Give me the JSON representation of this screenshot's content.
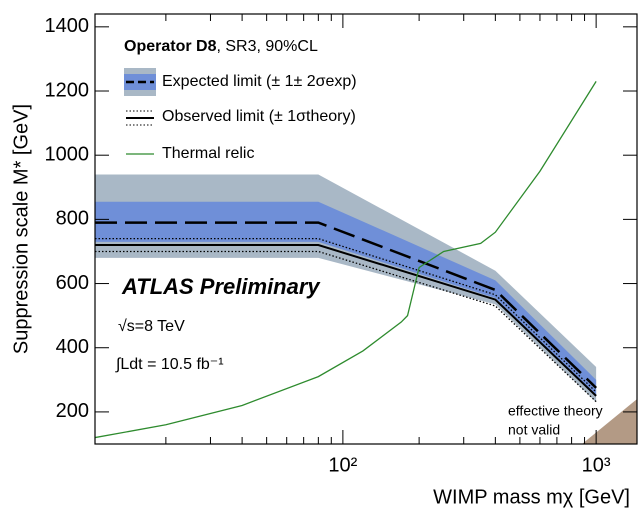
{
  "chart_data": {
    "type": "line",
    "xlabel": "WIMP mass mχ [GeV]",
    "ylabel": "Suppression scale M* [GeV]",
    "log_x": true,
    "xlim": [
      10.5,
      1450
    ],
    "ylim": [
      100,
      1440
    ],
    "xticks": [
      {
        "value": 100,
        "label": "10²"
      },
      {
        "value": 1000,
        "label": "10³"
      }
    ],
    "xticks_minor": [
      20,
      30,
      40,
      50,
      60,
      70,
      80,
      90,
      200,
      300,
      400,
      500,
      600,
      700,
      800,
      900
    ],
    "yticks": [
      200,
      400,
      600,
      800,
      1000,
      1200,
      1400
    ],
    "legend_title": [
      "Operator D8",
      ", SR3, 90%CL"
    ],
    "x": [
      10.5,
      80,
      400,
      1000
    ],
    "series": [
      {
        "name": "Expected limit (± 1± 2σexp)",
        "color": "#000000",
        "values": [
          790,
          790,
          580,
          275
        ],
        "band1_low": [
          730,
          730,
          555,
          250
        ],
        "band1_high": [
          855,
          855,
          610,
          300
        ],
        "band1_color": "#6f8fd8",
        "band2_low": [
          680,
          680,
          535,
          230
        ],
        "band2_high": [
          940,
          940,
          640,
          340
        ],
        "band2_color": "#a9b8c6"
      },
      {
        "name": "Observed limit (± 1σtheory)",
        "color": "#000000",
        "values": [
          720,
          720,
          550,
          250
        ],
        "theory_low": [
          700,
          700,
          530,
          232
        ],
        "theory_high": [
          740,
          740,
          565,
          262
        ]
      },
      {
        "name": "Thermal relic",
        "color": "#2e8b2e",
        "x": [
          10.5,
          20,
          40,
          80,
          120,
          170,
          180,
          200,
          250,
          350,
          400,
          600,
          1000
        ],
        "values": [
          120,
          160,
          220,
          310,
          390,
          480,
          500,
          650,
          700,
          725,
          760,
          950,
          1230
        ]
      }
    ],
    "invalid_region": {
      "label": [
        "effective theory",
        "not valid"
      ],
      "color": "#b39a85",
      "x": [
        880,
        1450,
        1450
      ],
      "y": [
        100,
        100,
        240
      ]
    },
    "annotations": [
      "ATLAS Preliminary",
      "√s=8 TeV",
      "∫Ldt = 10.5 fb⁻¹"
    ]
  }
}
